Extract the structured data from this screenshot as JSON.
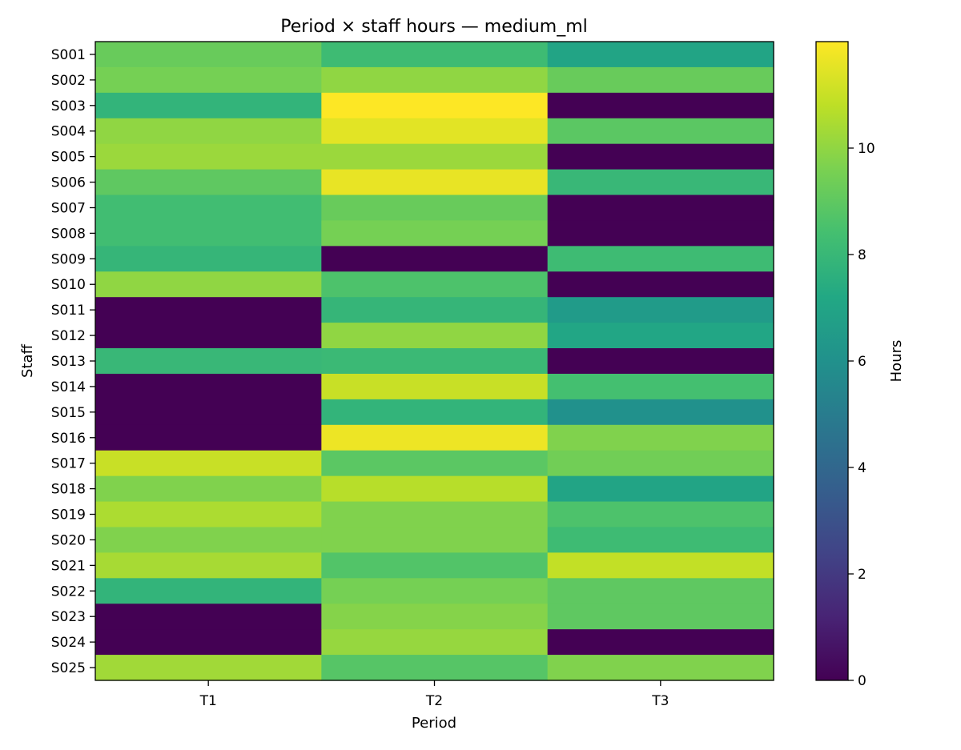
{
  "chart_data": {
    "type": "heatmap",
    "title": "Period × staff hours — medium_ml",
    "xlabel": "Period",
    "ylabel": "Staff",
    "colorbar_label": "Hours",
    "colormap": "viridis",
    "vmin": 0,
    "vmax": 12,
    "colorbar_ticks": [
      0,
      2,
      4,
      6,
      8,
      10
    ],
    "x_categories": [
      "T1",
      "T2",
      "T3"
    ],
    "y_categories": [
      "S001",
      "S002",
      "S003",
      "S004",
      "S005",
      "S006",
      "S007",
      "S008",
      "S009",
      "S010",
      "S011",
      "S012",
      "S013",
      "S014",
      "S015",
      "S016",
      "S017",
      "S018",
      "S019",
      "S020",
      "S021",
      "S022",
      "S023",
      "S024",
      "S025"
    ],
    "values": [
      [
        9.2,
        8.2,
        7.0
      ],
      [
        9.5,
        10.0,
        9.2
      ],
      [
        7.8,
        12.0,
        0
      ],
      [
        10.0,
        11.5,
        8.9
      ],
      [
        10.2,
        10.2,
        0
      ],
      [
        9.0,
        11.6,
        8.0
      ],
      [
        8.3,
        9.2,
        0
      ],
      [
        8.3,
        9.5,
        0
      ],
      [
        7.9,
        0,
        8.2
      ],
      [
        10.0,
        8.6,
        0
      ],
      [
        0,
        7.9,
        6.5
      ],
      [
        0,
        10.0,
        7.1
      ],
      [
        8.0,
        8.1,
        0
      ],
      [
        0,
        11.0,
        8.4
      ],
      [
        0,
        7.8,
        6.0
      ],
      [
        0,
        11.7,
        9.7
      ],
      [
        11.0,
        8.9,
        9.4
      ],
      [
        9.7,
        10.7,
        7.0
      ],
      [
        10.5,
        9.7,
        8.6
      ],
      [
        9.7,
        9.7,
        8.2
      ],
      [
        10.4,
        8.7,
        10.9
      ],
      [
        7.8,
        9.5,
        9.0
      ],
      [
        0,
        9.8,
        9.0
      ],
      [
        0,
        10.1,
        0
      ],
      [
        10.3,
        8.8,
        9.7
      ]
    ]
  }
}
